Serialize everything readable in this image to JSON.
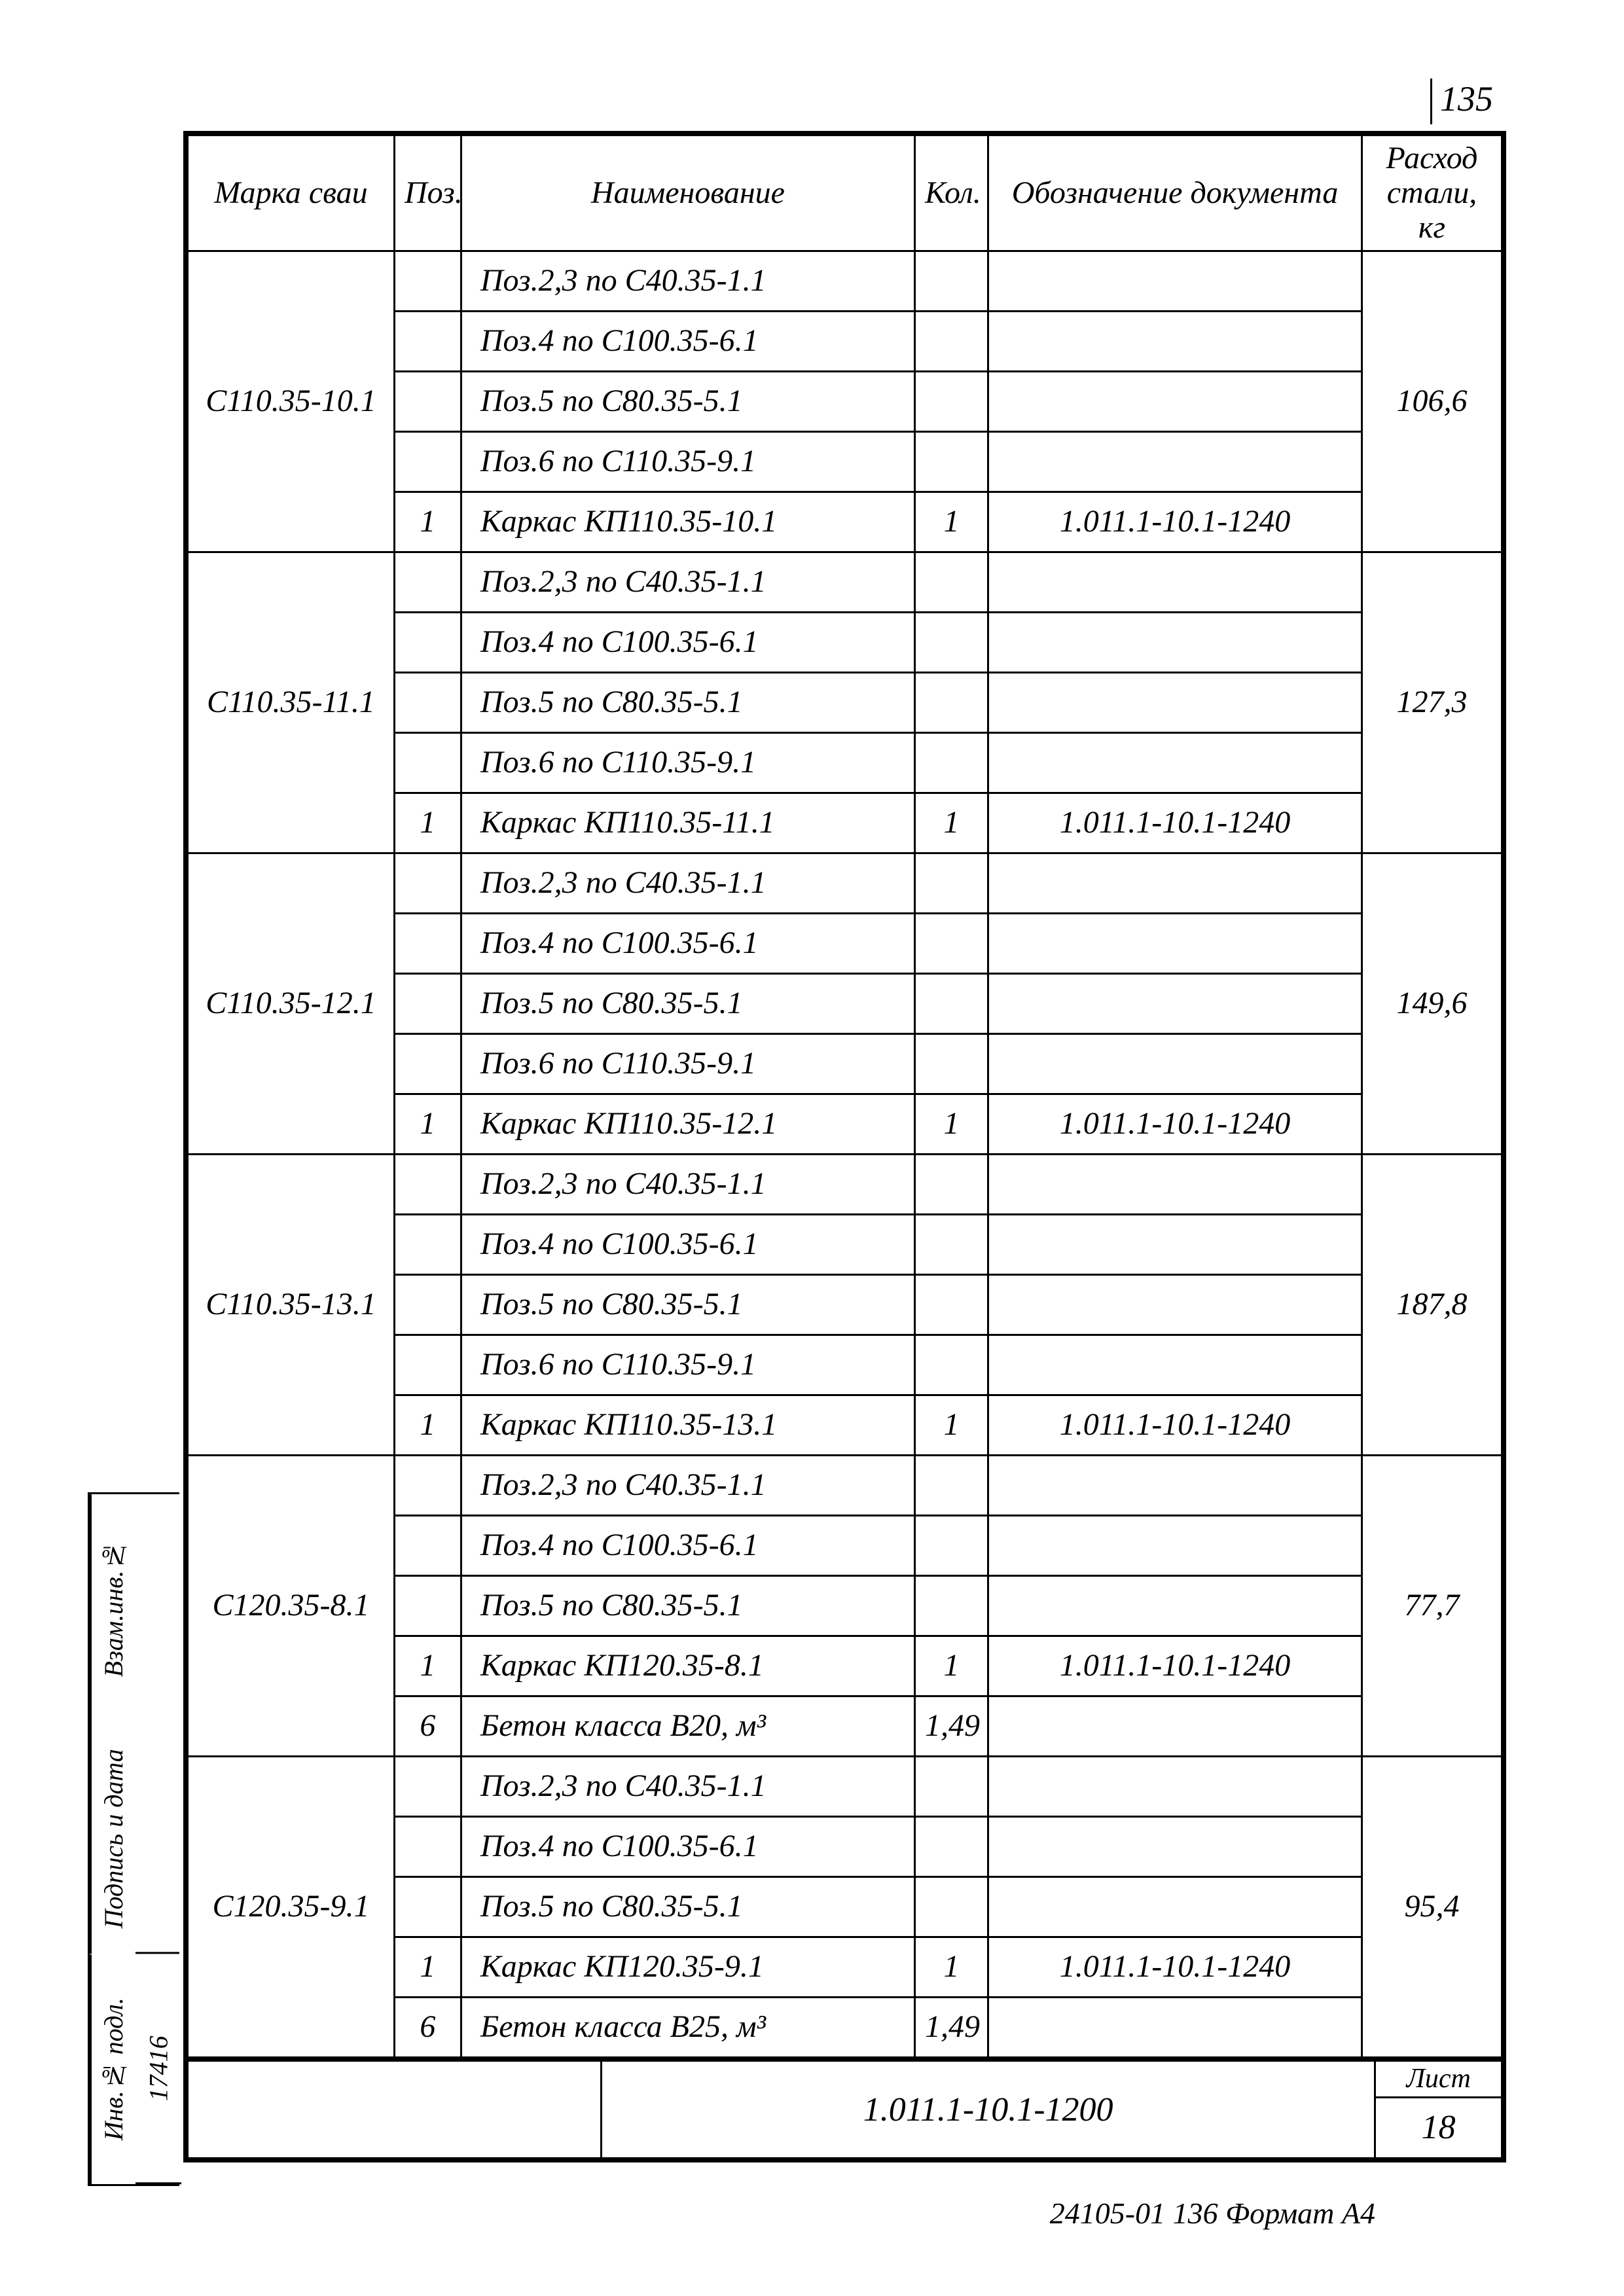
{
  "page_number": "135",
  "headers": {
    "marka": "Марка сваи",
    "poz": "Поз.",
    "naim": "Наименование",
    "kol": "Кол.",
    "oboz": "Обозначение документа",
    "ras": "Расход стали, кг"
  },
  "groups": [
    {
      "marka": "С110.35-10.1",
      "ras": "106,6",
      "rows": [
        {
          "poz": "",
          "naim": "Поз.2,3 по С40.35-1.1",
          "kol": "",
          "oboz": ""
        },
        {
          "poz": "",
          "naim": "Поз.4 по С100.35-6.1",
          "kol": "",
          "oboz": ""
        },
        {
          "poz": "",
          "naim": "Поз.5 по С80.35-5.1",
          "kol": "",
          "oboz": ""
        },
        {
          "poz": "",
          "naim": "Поз.6 по С110.35-9.1",
          "kol": "",
          "oboz": ""
        },
        {
          "poz": "1",
          "naim": "Каркас КП110.35-10.1",
          "kol": "1",
          "oboz": "1.011.1-10.1-1240"
        }
      ]
    },
    {
      "marka": "С110.35-11.1",
      "ras": "127,3",
      "rows": [
        {
          "poz": "",
          "naim": "Поз.2,3 по С40.35-1.1",
          "kol": "",
          "oboz": ""
        },
        {
          "poz": "",
          "naim": "Поз.4 по С100.35-6.1",
          "kol": "",
          "oboz": ""
        },
        {
          "poz": "",
          "naim": "Поз.5 по С80.35-5.1",
          "kol": "",
          "oboz": ""
        },
        {
          "poz": "",
          "naim": "Поз.6 по С110.35-9.1",
          "kol": "",
          "oboz": ""
        },
        {
          "poz": "1",
          "naim": "Каркас КП110.35-11.1",
          "kol": "1",
          "oboz": "1.011.1-10.1-1240"
        }
      ]
    },
    {
      "marka": "С110.35-12.1",
      "ras": "149,6",
      "rows": [
        {
          "poz": "",
          "naim": "Поз.2,3 по С40.35-1.1",
          "kol": "",
          "oboz": ""
        },
        {
          "poz": "",
          "naim": "Поз.4 по С100.35-6.1",
          "kol": "",
          "oboz": ""
        },
        {
          "poz": "",
          "naim": "Поз.5 по С80.35-5.1",
          "kol": "",
          "oboz": ""
        },
        {
          "poz": "",
          "naim": "Поз.6 по С110.35-9.1",
          "kol": "",
          "oboz": ""
        },
        {
          "poz": "1",
          "naim": "Каркас КП110.35-12.1",
          "kol": "1",
          "oboz": "1.011.1-10.1-1240"
        }
      ]
    },
    {
      "marka": "С110.35-13.1",
      "ras": "187,8",
      "rows": [
        {
          "poz": "",
          "naim": "Поз.2,3 по С40.35-1.1",
          "kol": "",
          "oboz": ""
        },
        {
          "poz": "",
          "naim": "Поз.4 по С100.35-6.1",
          "kol": "",
          "oboz": ""
        },
        {
          "poz": "",
          "naim": "Поз.5 по С80.35-5.1",
          "kol": "",
          "oboz": ""
        },
        {
          "poz": "",
          "naim": "Поз.6 по С110.35-9.1",
          "kol": "",
          "oboz": ""
        },
        {
          "poz": "1",
          "naim": "Каркас КП110.35-13.1",
          "kol": "1",
          "oboz": "1.011.1-10.1-1240"
        }
      ]
    },
    {
      "marka": "С120.35-8.1",
      "ras": "77,7",
      "rows": [
        {
          "poz": "",
          "naim": "Поз.2,3 по С40.35-1.1",
          "kol": "",
          "oboz": ""
        },
        {
          "poz": "",
          "naim": "Поз.4 по С100.35-6.1",
          "kol": "",
          "oboz": ""
        },
        {
          "poz": "",
          "naim": "Поз.5 по С80.35-5.1",
          "kol": "",
          "oboz": ""
        },
        {
          "poz": "1",
          "naim": "Каркас КП120.35-8.1",
          "kol": "1",
          "oboz": "1.011.1-10.1-1240"
        },
        {
          "poz": "6",
          "naim": "Бетон класса В20, м³",
          "kol": "1,49",
          "oboz": ""
        }
      ]
    },
    {
      "marka": "С120.35-9.1",
      "ras": "95,4",
      "rows": [
        {
          "poz": "",
          "naim": "Поз.2,3 по С40.35-1.1",
          "kol": "",
          "oboz": ""
        },
        {
          "poz": "",
          "naim": "Поз.4 по С100.35-6.1",
          "kol": "",
          "oboz": ""
        },
        {
          "poz": "",
          "naim": "Поз.5 по С80.35-5.1",
          "kol": "",
          "oboz": ""
        },
        {
          "poz": "1",
          "naim": "Каркас КП120.35-9.1",
          "kol": "1",
          "oboz": "1.011.1-10.1-1240"
        },
        {
          "poz": "6",
          "naim": "Бетон класса В25, м³",
          "kol": "1,49",
          "oboz": ""
        }
      ]
    }
  ],
  "title_block": {
    "doc_code": "1.011.1-10.1-1200",
    "list_label": "Лист",
    "list_num": "18"
  },
  "side": {
    "c1": "Инв.№ подл.",
    "c1v": "17416",
    "c2": "Подпись и дата",
    "c3": "Взам.инв.№"
  },
  "footer": "24105-01 136 Формат А4"
}
